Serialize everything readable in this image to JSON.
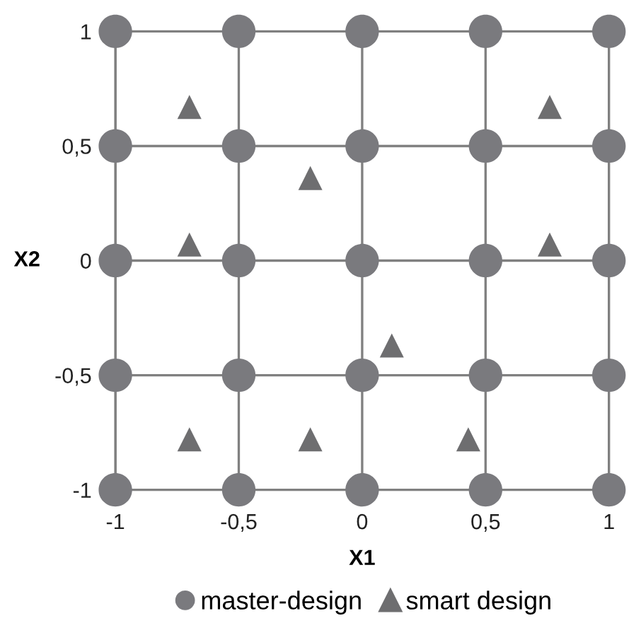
{
  "chart_data": {
    "type": "scatter",
    "xlabel": "X1",
    "ylabel": "X2",
    "xlim": [
      -1,
      1
    ],
    "ylim": [
      -1,
      1
    ],
    "xticks": [
      -1,
      {
        "value": -0.5,
        "label": "-0,5"
      },
      0,
      {
        "value": 0.5,
        "label": "0,5"
      },
      1
    ],
    "yticks": [
      -1,
      {
        "value": -0.5,
        "label": "-0,5"
      },
      0,
      {
        "value": 0.5,
        "label": "0,5"
      },
      1
    ],
    "grid": true,
    "legend": "bottom",
    "series": [
      {
        "name": "master-design",
        "color": "#7a7a7e",
        "marker": "circle",
        "x": [
          -1,
          -0.5,
          0,
          0.5,
          1,
          -1,
          -0.5,
          0,
          0.5,
          1,
          -1,
          -0.5,
          0,
          0.5,
          1,
          -1,
          -0.5,
          0,
          0.5,
          1,
          -1,
          -0.5,
          0,
          0.5,
          1
        ],
        "values": [
          1,
          1,
          1,
          1,
          1,
          0.5,
          0.5,
          0.5,
          0.5,
          0.5,
          0,
          0,
          0,
          0,
          0,
          -0.5,
          -0.5,
          -0.5,
          -0.5,
          -0.5,
          -1,
          -1,
          -1,
          -1,
          -1
        ]
      },
      {
        "name": "smart design",
        "color": "#6e6e70",
        "marker": "triangle",
        "x": [
          -0.7,
          -0.21,
          0.76,
          -0.7,
          0.76,
          0.12,
          -0.7,
          -0.21,
          0.43
        ],
        "values": [
          0.67,
          0.36,
          0.67,
          0.07,
          0.07,
          -0.37,
          -0.78,
          -0.78,
          -0.78
        ]
      }
    ]
  }
}
